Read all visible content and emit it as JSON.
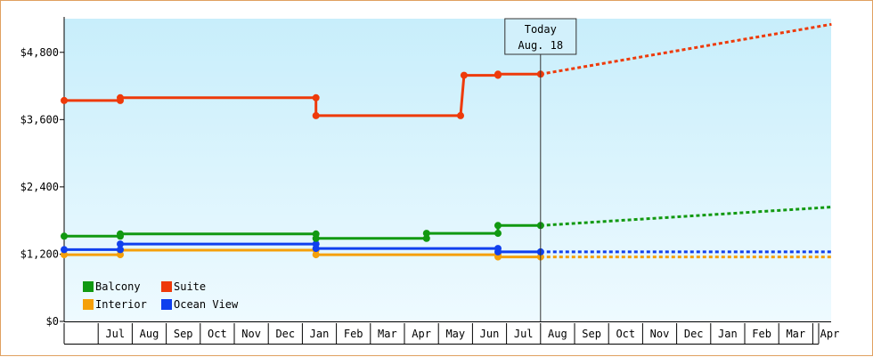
{
  "chart_data": {
    "type": "line",
    "title": "",
    "xlabel": "",
    "ylabel": "",
    "ylim": [
      0,
      5400
    ],
    "y_ticks": [
      {
        "value": 0,
        "label": "$0"
      },
      {
        "value": 1200,
        "label": "$1,200"
      },
      {
        "value": 2400,
        "label": "$2,400"
      },
      {
        "value": 3600,
        "label": "$3,600"
      },
      {
        "value": 4800,
        "label": "$4,800"
      }
    ],
    "x_months": [
      "",
      "Jul",
      "Aug",
      "Sep",
      "Oct",
      "Nov",
      "Dec",
      "Jan",
      "Feb",
      "Mar",
      "Apr",
      "May",
      "Jun",
      "Jul",
      "Aug",
      "Sep",
      "Oct",
      "Nov",
      "Dec",
      "Jan",
      "Feb",
      "Mar",
      "Apr",
      ""
    ],
    "xlim": [
      0,
      22.55
    ],
    "today": {
      "x": 14,
      "line1": "Today",
      "line2": "Aug. 18"
    },
    "legend_position": "bottom-left",
    "grid": false,
    "series": [
      {
        "name": "Suite",
        "color": "#ee3a0a",
        "points": [
          [
            0,
            3940
          ],
          [
            1.65,
            3940
          ],
          [
            1.65,
            3990
          ],
          [
            7.4,
            3990
          ],
          [
            7.4,
            3670
          ],
          [
            11.65,
            3670
          ],
          [
            11.75,
            4390
          ],
          [
            12.75,
            4390
          ],
          [
            12.75,
            4410
          ],
          [
            14,
            4410
          ]
        ],
        "markers": [
          [
            0,
            3940
          ],
          [
            1.65,
            3940
          ],
          [
            1.65,
            3990
          ],
          [
            7.4,
            3990
          ],
          [
            7.4,
            3670
          ],
          [
            11.65,
            3670
          ],
          [
            11.75,
            4390
          ],
          [
            12.75,
            4390
          ],
          [
            12.75,
            4410
          ],
          [
            14,
            4410
          ]
        ],
        "projection": [
          [
            14,
            4410
          ],
          [
            22.55,
            5300
          ]
        ]
      },
      {
        "name": "Balcony",
        "color": "#119911",
        "points": [
          [
            0,
            1520
          ],
          [
            1.65,
            1520
          ],
          [
            1.65,
            1560
          ],
          [
            7.4,
            1560
          ],
          [
            7.4,
            1480
          ],
          [
            10.65,
            1480
          ],
          [
            10.65,
            1570
          ],
          [
            12.75,
            1570
          ],
          [
            12.75,
            1710
          ],
          [
            14,
            1710
          ]
        ],
        "markers": [
          [
            0,
            1520
          ],
          [
            1.65,
            1520
          ],
          [
            1.65,
            1560
          ],
          [
            7.4,
            1560
          ],
          [
            7.4,
            1480
          ],
          [
            10.65,
            1480
          ],
          [
            10.65,
            1570
          ],
          [
            12.75,
            1570
          ],
          [
            12.75,
            1710
          ],
          [
            14,
            1710
          ]
        ],
        "projection": [
          [
            14,
            1710
          ],
          [
            22.55,
            2040
          ]
        ]
      },
      {
        "name": "Interior",
        "color": "#f5a00a",
        "points": [
          [
            0,
            1190
          ],
          [
            1.65,
            1190
          ],
          [
            1.65,
            1270
          ],
          [
            7.4,
            1270
          ],
          [
            7.4,
            1190
          ],
          [
            12.75,
            1190
          ],
          [
            12.75,
            1150
          ],
          [
            14,
            1150
          ]
        ],
        "markers": [
          [
            0,
            1190
          ],
          [
            1.65,
            1190
          ],
          [
            1.65,
            1270
          ],
          [
            7.4,
            1270
          ],
          [
            7.4,
            1190
          ],
          [
            12.75,
            1190
          ],
          [
            12.75,
            1150
          ],
          [
            14,
            1150
          ]
        ],
        "projection": [
          [
            14,
            1150
          ],
          [
            22.55,
            1150
          ]
        ]
      },
      {
        "name": "Ocean View",
        "color": "#1040ee",
        "points": [
          [
            0,
            1280
          ],
          [
            1.65,
            1280
          ],
          [
            1.65,
            1380
          ],
          [
            7.4,
            1380
          ],
          [
            7.4,
            1300
          ],
          [
            12.75,
            1300
          ],
          [
            12.75,
            1240
          ],
          [
            14,
            1240
          ]
        ],
        "markers": [
          [
            0,
            1280
          ],
          [
            1.65,
            1280
          ],
          [
            1.65,
            1380
          ],
          [
            7.4,
            1380
          ],
          [
            7.4,
            1300
          ],
          [
            12.75,
            1300
          ],
          [
            12.75,
            1240
          ],
          [
            14,
            1240
          ]
        ],
        "projection": [
          [
            14,
            1240
          ],
          [
            22.55,
            1240
          ]
        ]
      }
    ],
    "legend": [
      {
        "name": "Balcony",
        "color": "#119911"
      },
      {
        "name": "Suite",
        "color": "#ee3a0a"
      },
      {
        "name": "Interior",
        "color": "#f5a00a"
      },
      {
        "name": "Ocean View",
        "color": "#1040ee"
      }
    ]
  }
}
